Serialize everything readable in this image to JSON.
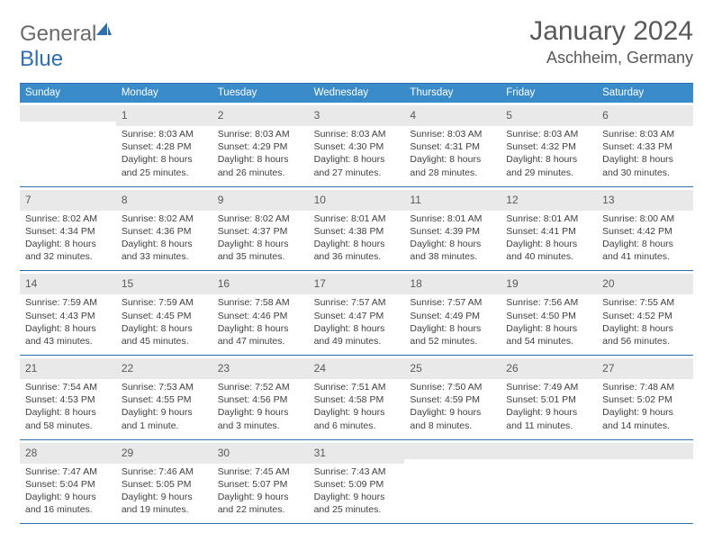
{
  "brand": {
    "part1": "General",
    "part2": "Blue"
  },
  "title": "January 2024",
  "location": "Aschheim, Germany",
  "colors": {
    "header_bg": "#3a8bc9",
    "border": "#2f6fb0",
    "daynum_bg": "#e9e9e9",
    "text": "#404040",
    "title_text": "#595959"
  },
  "weekdays": [
    "Sunday",
    "Monday",
    "Tuesday",
    "Wednesday",
    "Thursday",
    "Friday",
    "Saturday"
  ],
  "weeks": [
    [
      {
        "day": "",
        "sunrise": "",
        "sunset": "",
        "daylight1": "",
        "daylight2": ""
      },
      {
        "day": "1",
        "sunrise": "Sunrise: 8:03 AM",
        "sunset": "Sunset: 4:28 PM",
        "daylight1": "Daylight: 8 hours",
        "daylight2": "and 25 minutes."
      },
      {
        "day": "2",
        "sunrise": "Sunrise: 8:03 AM",
        "sunset": "Sunset: 4:29 PM",
        "daylight1": "Daylight: 8 hours",
        "daylight2": "and 26 minutes."
      },
      {
        "day": "3",
        "sunrise": "Sunrise: 8:03 AM",
        "sunset": "Sunset: 4:30 PM",
        "daylight1": "Daylight: 8 hours",
        "daylight2": "and 27 minutes."
      },
      {
        "day": "4",
        "sunrise": "Sunrise: 8:03 AM",
        "sunset": "Sunset: 4:31 PM",
        "daylight1": "Daylight: 8 hours",
        "daylight2": "and 28 minutes."
      },
      {
        "day": "5",
        "sunrise": "Sunrise: 8:03 AM",
        "sunset": "Sunset: 4:32 PM",
        "daylight1": "Daylight: 8 hours",
        "daylight2": "and 29 minutes."
      },
      {
        "day": "6",
        "sunrise": "Sunrise: 8:03 AM",
        "sunset": "Sunset: 4:33 PM",
        "daylight1": "Daylight: 8 hours",
        "daylight2": "and 30 minutes."
      }
    ],
    [
      {
        "day": "7",
        "sunrise": "Sunrise: 8:02 AM",
        "sunset": "Sunset: 4:34 PM",
        "daylight1": "Daylight: 8 hours",
        "daylight2": "and 32 minutes."
      },
      {
        "day": "8",
        "sunrise": "Sunrise: 8:02 AM",
        "sunset": "Sunset: 4:36 PM",
        "daylight1": "Daylight: 8 hours",
        "daylight2": "and 33 minutes."
      },
      {
        "day": "9",
        "sunrise": "Sunrise: 8:02 AM",
        "sunset": "Sunset: 4:37 PM",
        "daylight1": "Daylight: 8 hours",
        "daylight2": "and 35 minutes."
      },
      {
        "day": "10",
        "sunrise": "Sunrise: 8:01 AM",
        "sunset": "Sunset: 4:38 PM",
        "daylight1": "Daylight: 8 hours",
        "daylight2": "and 36 minutes."
      },
      {
        "day": "11",
        "sunrise": "Sunrise: 8:01 AM",
        "sunset": "Sunset: 4:39 PM",
        "daylight1": "Daylight: 8 hours",
        "daylight2": "and 38 minutes."
      },
      {
        "day": "12",
        "sunrise": "Sunrise: 8:01 AM",
        "sunset": "Sunset: 4:41 PM",
        "daylight1": "Daylight: 8 hours",
        "daylight2": "and 40 minutes."
      },
      {
        "day": "13",
        "sunrise": "Sunrise: 8:00 AM",
        "sunset": "Sunset: 4:42 PM",
        "daylight1": "Daylight: 8 hours",
        "daylight2": "and 41 minutes."
      }
    ],
    [
      {
        "day": "14",
        "sunrise": "Sunrise: 7:59 AM",
        "sunset": "Sunset: 4:43 PM",
        "daylight1": "Daylight: 8 hours",
        "daylight2": "and 43 minutes."
      },
      {
        "day": "15",
        "sunrise": "Sunrise: 7:59 AM",
        "sunset": "Sunset: 4:45 PM",
        "daylight1": "Daylight: 8 hours",
        "daylight2": "and 45 minutes."
      },
      {
        "day": "16",
        "sunrise": "Sunrise: 7:58 AM",
        "sunset": "Sunset: 4:46 PM",
        "daylight1": "Daylight: 8 hours",
        "daylight2": "and 47 minutes."
      },
      {
        "day": "17",
        "sunrise": "Sunrise: 7:57 AM",
        "sunset": "Sunset: 4:47 PM",
        "daylight1": "Daylight: 8 hours",
        "daylight2": "and 49 minutes."
      },
      {
        "day": "18",
        "sunrise": "Sunrise: 7:57 AM",
        "sunset": "Sunset: 4:49 PM",
        "daylight1": "Daylight: 8 hours",
        "daylight2": "and 52 minutes."
      },
      {
        "day": "19",
        "sunrise": "Sunrise: 7:56 AM",
        "sunset": "Sunset: 4:50 PM",
        "daylight1": "Daylight: 8 hours",
        "daylight2": "and 54 minutes."
      },
      {
        "day": "20",
        "sunrise": "Sunrise: 7:55 AM",
        "sunset": "Sunset: 4:52 PM",
        "daylight1": "Daylight: 8 hours",
        "daylight2": "and 56 minutes."
      }
    ],
    [
      {
        "day": "21",
        "sunrise": "Sunrise: 7:54 AM",
        "sunset": "Sunset: 4:53 PM",
        "daylight1": "Daylight: 8 hours",
        "daylight2": "and 58 minutes."
      },
      {
        "day": "22",
        "sunrise": "Sunrise: 7:53 AM",
        "sunset": "Sunset: 4:55 PM",
        "daylight1": "Daylight: 9 hours",
        "daylight2": "and 1 minute."
      },
      {
        "day": "23",
        "sunrise": "Sunrise: 7:52 AM",
        "sunset": "Sunset: 4:56 PM",
        "daylight1": "Daylight: 9 hours",
        "daylight2": "and 3 minutes."
      },
      {
        "day": "24",
        "sunrise": "Sunrise: 7:51 AM",
        "sunset": "Sunset: 4:58 PM",
        "daylight1": "Daylight: 9 hours",
        "daylight2": "and 6 minutes."
      },
      {
        "day": "25",
        "sunrise": "Sunrise: 7:50 AM",
        "sunset": "Sunset: 4:59 PM",
        "daylight1": "Daylight: 9 hours",
        "daylight2": "and 8 minutes."
      },
      {
        "day": "26",
        "sunrise": "Sunrise: 7:49 AM",
        "sunset": "Sunset: 5:01 PM",
        "daylight1": "Daylight: 9 hours",
        "daylight2": "and 11 minutes."
      },
      {
        "day": "27",
        "sunrise": "Sunrise: 7:48 AM",
        "sunset": "Sunset: 5:02 PM",
        "daylight1": "Daylight: 9 hours",
        "daylight2": "and 14 minutes."
      }
    ],
    [
      {
        "day": "28",
        "sunrise": "Sunrise: 7:47 AM",
        "sunset": "Sunset: 5:04 PM",
        "daylight1": "Daylight: 9 hours",
        "daylight2": "and 16 minutes."
      },
      {
        "day": "29",
        "sunrise": "Sunrise: 7:46 AM",
        "sunset": "Sunset: 5:05 PM",
        "daylight1": "Daylight: 9 hours",
        "daylight2": "and 19 minutes."
      },
      {
        "day": "30",
        "sunrise": "Sunrise: 7:45 AM",
        "sunset": "Sunset: 5:07 PM",
        "daylight1": "Daylight: 9 hours",
        "daylight2": "and 22 minutes."
      },
      {
        "day": "31",
        "sunrise": "Sunrise: 7:43 AM",
        "sunset": "Sunset: 5:09 PM",
        "daylight1": "Daylight: 9 hours",
        "daylight2": "and 25 minutes."
      },
      {
        "day": "",
        "sunrise": "",
        "sunset": "",
        "daylight1": "",
        "daylight2": ""
      },
      {
        "day": "",
        "sunrise": "",
        "sunset": "",
        "daylight1": "",
        "daylight2": ""
      },
      {
        "day": "",
        "sunrise": "",
        "sunset": "",
        "daylight1": "",
        "daylight2": ""
      }
    ]
  ]
}
